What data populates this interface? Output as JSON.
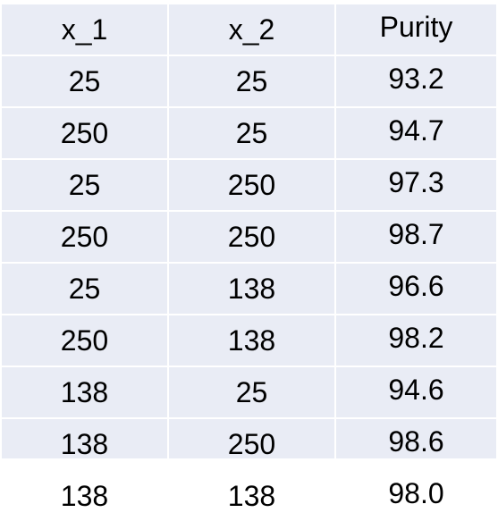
{
  "table": {
    "headers": [
      "x_1",
      "x_2",
      "Purity"
    ],
    "rows": [
      [
        "25",
        "25",
        "93.2"
      ],
      [
        "250",
        "25",
        "94.7"
      ],
      [
        "25",
        "250",
        "97.3"
      ],
      [
        "250",
        "250",
        "98.7"
      ],
      [
        "25",
        "138",
        "96.6"
      ],
      [
        "250",
        "138",
        "98.2"
      ],
      [
        "138",
        "25",
        "94.6"
      ],
      [
        "138",
        "250",
        "98.6"
      ],
      [
        "138",
        "138",
        "98.0"
      ]
    ]
  },
  "colors": {
    "cell_background": "#e9ecf5",
    "grid_lines": "#ffffff",
    "text": "#000000"
  }
}
